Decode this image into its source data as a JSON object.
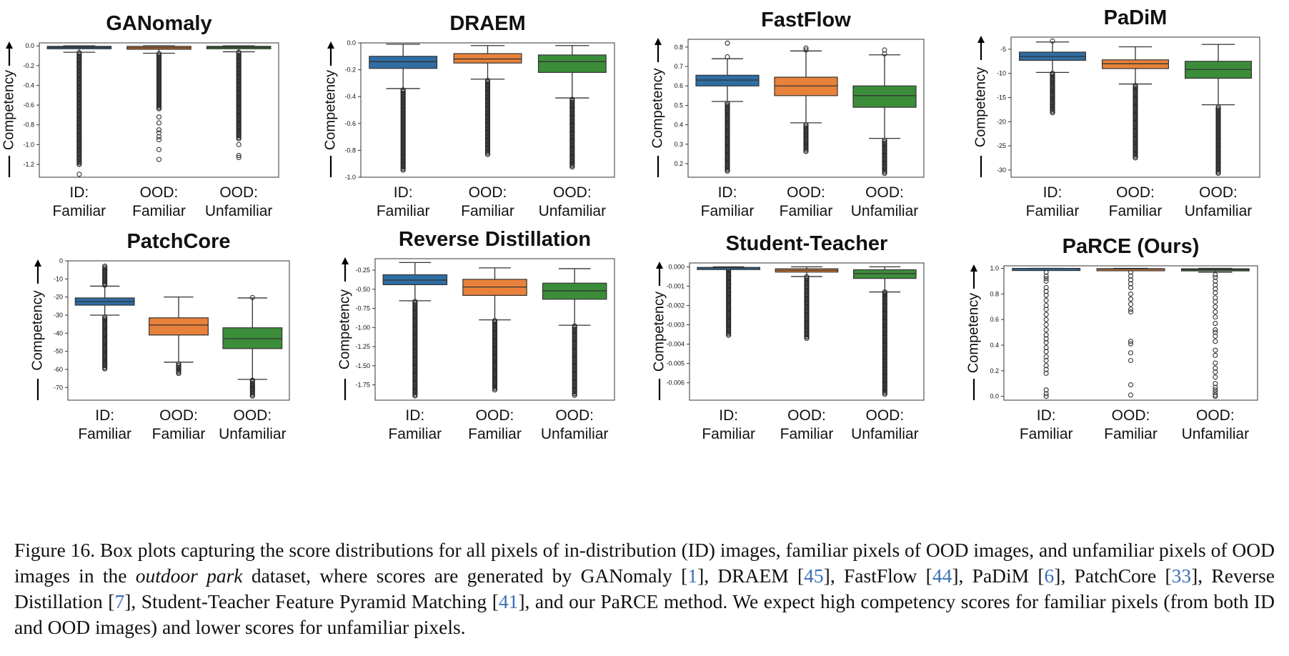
{
  "chart_data": [
    {
      "type": "box",
      "title": "GANomaly",
      "ylabel": "Competency",
      "categories": [
        "ID:\nFamiliar",
        "OOD:\nFamiliar",
        "OOD:\nUnfamiliar"
      ],
      "yticks": [
        "0.0",
        "-0.2",
        "-0.4",
        "-0.6",
        "-0.8",
        "-1.0",
        "-1.2"
      ],
      "ytick_values": [
        0,
        -0.2,
        -0.4,
        -0.6,
        -0.8,
        -1.0,
        -1.2
      ],
      "ylim": [
        -1.33,
        0.03
      ],
      "boxes": [
        {
          "name": "ID: Familiar",
          "color": "#2f6da3",
          "whislo": -0.065,
          "q1": -0.03,
          "med": -0.015,
          "q3": -0.005,
          "whishi": 0.0,
          "outliers_range": [
            -1.2,
            -0.07
          ],
          "outliers": [
            -1.3,
            -1.18,
            -1.15,
            -1.12
          ]
        },
        {
          "name": "OOD: Familiar",
          "color": "#e8823a",
          "whislo": -0.075,
          "q1": -0.035,
          "med": -0.02,
          "q3": -0.005,
          "whishi": 0.0,
          "outliers_range": [
            -0.65,
            -0.08
          ],
          "outliers": [
            -0.72,
            -0.78,
            -0.85,
            -0.88,
            -0.92,
            -0.95,
            -1.05,
            -1.15
          ]
        },
        {
          "name": "OOD: Unfamiliar",
          "color": "#3c8d3a",
          "whislo": -0.06,
          "q1": -0.03,
          "med": -0.015,
          "q3": -0.005,
          "whishi": 0.0,
          "outliers_range": [
            -0.95,
            -0.065
          ],
          "outliers": [
            -1.0,
            -1.11,
            -1.13
          ]
        }
      ]
    },
    {
      "type": "box",
      "title": "DRAEM",
      "ylabel": "Competency",
      "categories": [
        "ID:\nFamiliar",
        "OOD:\nFamiliar",
        "OOD:\nUnfamiliar"
      ],
      "yticks": [
        "0.0",
        "-0.2",
        "-0.4",
        "-0.6",
        "-0.8",
        "-1.0"
      ],
      "ytick_values": [
        0,
        -0.2,
        -0.4,
        -0.6,
        -0.8,
        -1.0
      ],
      "ylim": [
        -1.0,
        0.0
      ],
      "boxes": [
        {
          "name": "ID: Familiar",
          "color": "#2f6da3",
          "whislo": -0.34,
          "q1": -0.19,
          "med": -0.14,
          "q3": -0.1,
          "whishi": -0.01,
          "outliers_range": [
            -0.95,
            -0.35
          ],
          "outliers": []
        },
        {
          "name": "OOD: Familiar",
          "color": "#e8823a",
          "whislo": -0.27,
          "q1": -0.15,
          "med": -0.12,
          "q3": -0.08,
          "whishi": -0.02,
          "outliers_range": [
            -0.84,
            -0.28
          ],
          "outliers": []
        },
        {
          "name": "OOD: Unfamiliar",
          "color": "#3c8d3a",
          "whislo": -0.41,
          "q1": -0.22,
          "med": -0.14,
          "q3": -0.09,
          "whishi": -0.02,
          "outliers_range": [
            -0.93,
            -0.42
          ],
          "outliers": []
        }
      ]
    },
    {
      "type": "box",
      "title": "FastFlow",
      "ylabel": "Competency",
      "categories": [
        "ID:\nFamiliar",
        "OOD:\nFamiliar",
        "OOD:\nUnfamiliar"
      ],
      "yticks": [
        "0.8",
        "0.7",
        "0.6",
        "0.5",
        "0.4",
        "0.3",
        "0.2"
      ],
      "ytick_values": [
        0.8,
        0.7,
        0.6,
        0.5,
        0.4,
        0.3,
        0.2
      ],
      "ylim": [
        0.13,
        0.84
      ],
      "boxes": [
        {
          "name": "ID: Familiar",
          "color": "#2f6da3",
          "whislo": 0.52,
          "q1": 0.6,
          "med": 0.63,
          "q3": 0.655,
          "whishi": 0.74,
          "outliers_range": [
            0.16,
            0.51
          ],
          "outliers_hi": [
            0.75,
            0.82
          ]
        },
        {
          "name": "OOD: Familiar",
          "color": "#e8823a",
          "whislo": 0.41,
          "q1": 0.55,
          "med": 0.6,
          "q3": 0.645,
          "whishi": 0.78,
          "outliers_range": [
            0.26,
            0.4
          ],
          "outliers_hi": [
            0.785,
            0.795
          ]
        },
        {
          "name": "OOD: Unfamiliar",
          "color": "#3c8d3a",
          "whislo": 0.33,
          "q1": 0.49,
          "med": 0.55,
          "q3": 0.6,
          "whishi": 0.76,
          "outliers_range": [
            0.15,
            0.32
          ],
          "outliers_hi": [
            0.765,
            0.785
          ]
        }
      ]
    },
    {
      "type": "box",
      "title": "PaDiM",
      "ylabel": "Competency",
      "categories": [
        "ID:\nFamiliar",
        "OOD:\nFamiliar",
        "OOD:\nUnfamiliar"
      ],
      "yticks": [
        "-5",
        "-10",
        "-15",
        "-20",
        "-25",
        "-30"
      ],
      "ytick_values": [
        -5,
        -10,
        -15,
        -20,
        -25,
        -30
      ],
      "ylim": [
        -31.5,
        -2.5
      ],
      "boxes": [
        {
          "name": "ID: Familiar",
          "color": "#2f6da3",
          "whislo": -9.8,
          "q1": -7.3,
          "med": -6.5,
          "q3": -5.6,
          "whishi": -3.5,
          "outliers_range": [
            -18.2,
            -10
          ],
          "outliers_hi": [
            -3.3
          ]
        },
        {
          "name": "OOD: Familiar",
          "color": "#e8823a",
          "whislo": -12.2,
          "q1": -9.0,
          "med": -8.0,
          "q3": -7.2,
          "whishi": -4.5,
          "outliers_range": [
            -27.5,
            -12.5
          ],
          "outliers_hi": []
        },
        {
          "name": "OOD: Unfamiliar",
          "color": "#3c8d3a",
          "whislo": -16.5,
          "q1": -11.0,
          "med": -9.2,
          "q3": -7.5,
          "whishi": -4.0,
          "outliers_range": [
            -30.8,
            -17
          ],
          "outliers_hi": []
        }
      ]
    },
    {
      "type": "box",
      "title": "PatchCore",
      "ylabel": "Competency",
      "categories": [
        "ID:\nFamiliar",
        "OOD:\nFamiliar",
        "OOD:\nUnfamiliar"
      ],
      "yticks": [
        "0",
        "-10",
        "-20",
        "-30",
        "-40",
        "-50",
        "-60",
        "-70"
      ],
      "ytick_values": [
        0,
        -10,
        -20,
        -30,
        -40,
        -50,
        -60,
        -70
      ],
      "ylim": [
        -77,
        0
      ],
      "boxes": [
        {
          "name": "ID: Familiar",
          "color": "#2f6da3",
          "whislo": -30,
          "q1": -24.5,
          "med": -22.5,
          "q3": -20.5,
          "whishi": -14,
          "outliers_range": [
            -60,
            -31
          ],
          "outliers_hi_range": [
            -13.5,
            -3
          ]
        },
        {
          "name": "OOD: Familiar",
          "color": "#e8823a",
          "whislo": -56,
          "q1": -41,
          "med": -35.5,
          "q3": -31.5,
          "whishi": -20,
          "outliers_range": [
            -63,
            -57
          ],
          "outliers_hi_range": []
        },
        {
          "name": "OOD: Unfamiliar",
          "color": "#3c8d3a",
          "whislo": -65.5,
          "q1": -48.5,
          "med": -43,
          "q3": -37,
          "whishi": -20.5,
          "outliers_range": [
            -75,
            -66
          ],
          "outliers_hi": [
            -20.3
          ]
        }
      ]
    },
    {
      "type": "box",
      "title": "Reverse Distillation",
      "ylabel": "Competency",
      "categories": [
        "ID:\nFamiliar",
        "OOD:\nFamiliar",
        "OOD:\nUnfamiliar"
      ],
      "yticks": [
        "-0.25",
        "-0.50",
        "-0.75",
        "-1.00",
        "-1.25",
        "-1.50",
        "-1.75"
      ],
      "ytick_values": [
        -0.25,
        -0.5,
        -0.75,
        -1.0,
        -1.25,
        -1.5,
        -1.75
      ],
      "ylim": [
        -1.95,
        -0.1
      ],
      "boxes": [
        {
          "name": "ID: Familiar",
          "color": "#2f6da3",
          "whislo": -0.65,
          "q1": -0.44,
          "med": -0.38,
          "q3": -0.31,
          "whishi": -0.15,
          "outliers_range": [
            -1.9,
            -0.66
          ],
          "outliers": []
        },
        {
          "name": "OOD: Familiar",
          "color": "#e8823a",
          "whislo": -0.9,
          "q1": -0.58,
          "med": -0.47,
          "q3": -0.37,
          "whishi": -0.22,
          "outliers_range": [
            -1.82,
            -0.91
          ],
          "outliers": []
        },
        {
          "name": "OOD: Unfamiliar",
          "color": "#3c8d3a",
          "whislo": -0.97,
          "q1": -0.63,
          "med": -0.52,
          "q3": -0.42,
          "whishi": -0.23,
          "outliers_range": [
            -1.9,
            -0.98
          ],
          "outliers": []
        }
      ]
    },
    {
      "type": "box",
      "title": "Student-Teacher",
      "ylabel": "Competency",
      "categories": [
        "ID:\nFamiliar",
        "OOD:\nFamiliar",
        "OOD:\nUnfamiliar"
      ],
      "yticks": [
        "0.000",
        "-0.001",
        "-0.002",
        "-0.003",
        "-0.004",
        "-0.005",
        "-0.006"
      ],
      "ytick_values": [
        0,
        -0.001,
        -0.002,
        -0.003,
        -0.004,
        -0.005,
        -0.006
      ],
      "ylim": [
        -0.0069,
        0.0002
      ],
      "boxes": [
        {
          "name": "ID: Familiar",
          "color": "#2f6da3",
          "whislo": -0.0001,
          "q1": -7e-05,
          "med": -5e-05,
          "q3": -3e-05,
          "whishi": 0.0,
          "outliers_range": [
            -0.0036,
            -0.00012
          ],
          "outliers": []
        },
        {
          "name": "OOD: Familiar",
          "color": "#e8823a",
          "whislo": -0.0005,
          "q1": -0.00027,
          "med": -0.00018,
          "q3": -0.0001,
          "whishi": 0.0,
          "outliers_range": [
            -0.0037,
            -0.00052
          ],
          "outliers": []
        },
        {
          "name": "OOD: Unfamiliar",
          "color": "#3c8d3a",
          "whislo": -0.0013,
          "q1": -0.0006,
          "med": -0.00035,
          "q3": -0.00015,
          "whishi": 0.0,
          "outliers_range": [
            -0.0066,
            -0.0013
          ],
          "outliers": []
        }
      ]
    },
    {
      "type": "box",
      "title": "PaRCE (Ours)",
      "ylabel": "Competency",
      "categories": [
        "ID:\nFamiliar",
        "OOD:\nFamiliar",
        "OOD:\nUnfamiliar"
      ],
      "yticks": [
        "1.0",
        "0.8",
        "0.6",
        "0.4",
        "0.2",
        "0.0"
      ],
      "ytick_values": [
        1.0,
        0.8,
        0.6,
        0.4,
        0.2,
        0.0
      ],
      "ylim": [
        -0.03,
        1.02
      ],
      "boxes": [
        {
          "name": "ID: Familiar",
          "color": "#2f6da3",
          "whislo": 0.99,
          "q1": 0.998,
          "med": 0.999,
          "q3": 1.0,
          "whishi": 1.0,
          "outliers": [
            0.97,
            0.94,
            0.92,
            0.9,
            0.85,
            0.82,
            0.79,
            0.75,
            0.71,
            0.68,
            0.64,
            0.6,
            0.56,
            0.52,
            0.48,
            0.45,
            0.42,
            0.38,
            0.35,
            0.31,
            0.28,
            0.24,
            0.21,
            0.18,
            0.05,
            0.02,
            0.0
          ]
        },
        {
          "name": "OOD: Familiar",
          "color": "#e8823a",
          "whislo": 0.985,
          "q1": 0.992,
          "med": 0.995,
          "q3": 0.998,
          "whishi": 1.0,
          "outliers": [
            0.97,
            0.94,
            0.91,
            0.88,
            0.85,
            0.8,
            0.76,
            0.72,
            0.68,
            0.66,
            0.43,
            0.41,
            0.34,
            0.28,
            0.09,
            0.01
          ]
        },
        {
          "name": "OOD: Unfamiliar",
          "color": "#3c8d3a",
          "whislo": 0.97,
          "q1": 0.985,
          "med": 0.99,
          "q3": 0.997,
          "whishi": 1.0,
          "outliers": [
            0.95,
            0.93,
            0.9,
            0.87,
            0.84,
            0.81,
            0.77,
            0.74,
            0.7,
            0.66,
            0.62,
            0.57,
            0.52,
            0.5,
            0.47,
            0.43,
            0.36,
            0.32,
            0.26,
            0.22,
            0.19,
            0.15,
            0.1,
            0.07,
            0.05,
            0.03,
            0.01,
            0.0
          ]
        }
      ]
    }
  ],
  "caption": {
    "p1": "Figure 16.  Box plots capturing the score distributions for all pixels of in-distribution (ID) images, familiar pixels of OOD images, and unfamiliar pixels of OOD images in the ",
    "dataset": "outdoor park",
    "p2": " dataset, where scores are generated by GANomaly [",
    "r1": "1",
    "p3": "], DRAEM [",
    "r2": "45",
    "p4": "], FastFlow [",
    "r3": "44",
    "p5": "], PaDiM [",
    "r4": "6",
    "p6": "], PatchCore [",
    "r5": "33",
    "p7": "], Reverse Distillation [",
    "r6": "7",
    "p8": "], Student-Teacher Feature Pyramid Matching [",
    "r7": "41",
    "p9": "], and our PaRCE method. We expect high competency scores for familiar pixels (from both ID and OOD images) and lower scores for unfamiliar pixels."
  }
}
